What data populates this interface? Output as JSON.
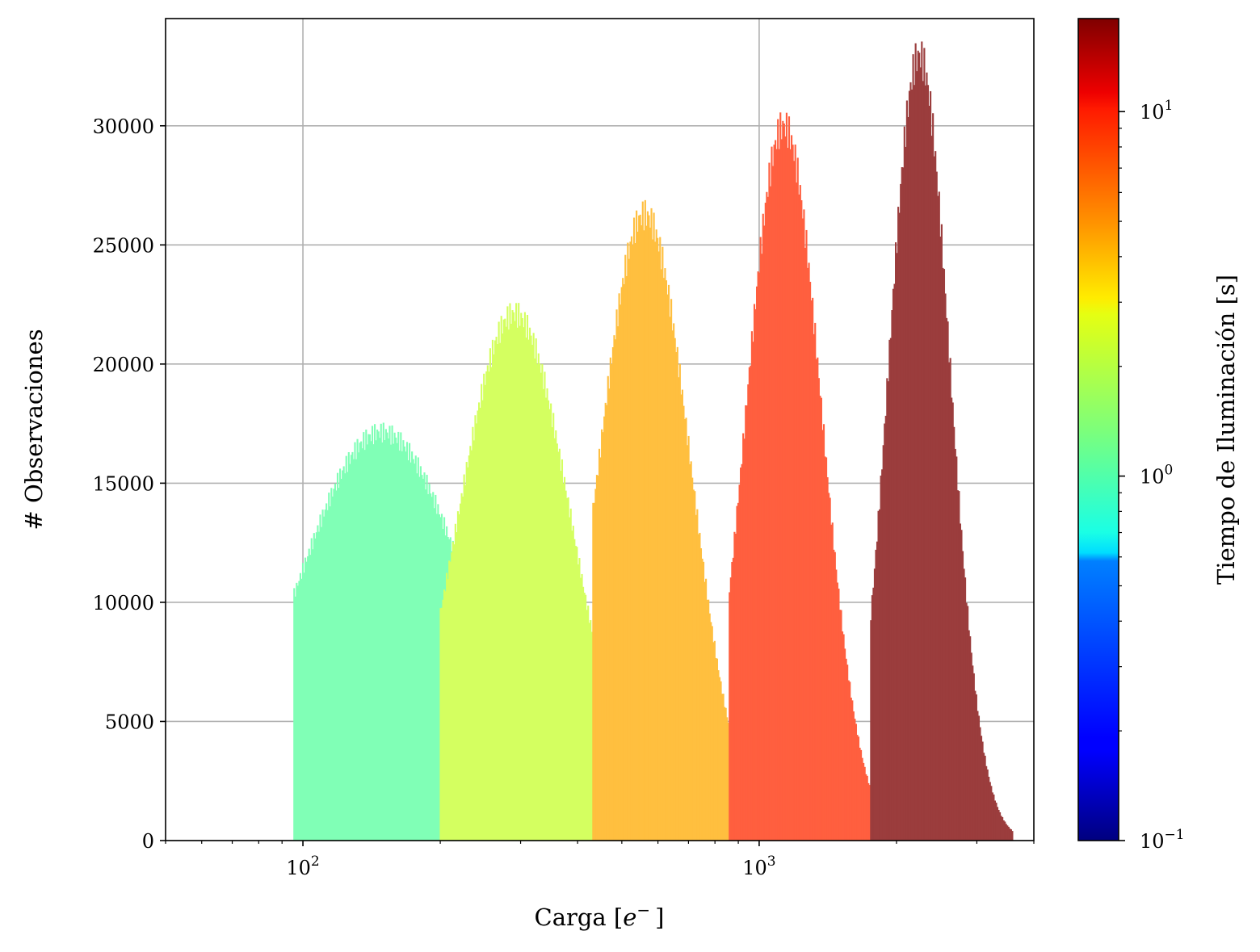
{
  "chart_data": {
    "type": "bar",
    "xlabel": "Carga [",
    "xlabel_unit": "e",
    "xlabel_sup": "−",
    "xlabel_close": "]",
    "ylabel": "# Observaciones",
    "xscale": "log",
    "xlim": [
      50,
      4000
    ],
    "ylim": [
      0,
      34500
    ],
    "grid": true,
    "y_ticks": [
      0,
      5000,
      10000,
      15000,
      20000,
      25000,
      30000
    ],
    "y_tick_labels": [
      "0",
      "5000",
      "10000",
      "15000",
      "20000",
      "25000",
      "30000"
    ],
    "x_ticks": [
      100,
      1000
    ],
    "x_tick_labels": [
      {
        "base": "10",
        "exp": "2"
      },
      {
        "base": "10",
        "exp": "3"
      }
    ],
    "series": [
      {
        "color": "#80ffb6",
        "peak_x": 148,
        "peak_y": 17000,
        "width": 0.19,
        "bump_x": 230,
        "bump_y": 250,
        "x_range": [
          95,
          270
        ]
      },
      {
        "color": "#d4ff60",
        "peak_x": 290,
        "peak_y": 22000,
        "width": 0.125,
        "bump_x": 375,
        "bump_y": 170,
        "x_range": [
          200,
          450
        ]
      },
      {
        "color": "#ffbf3f",
        "peak_x": 560,
        "peak_y": 26200,
        "width": 0.1,
        "bump_x": 730,
        "bump_y": 160,
        "x_range": [
          430,
          880
        ]
      },
      {
        "color": "#ff5f3f",
        "peak_x": 1130,
        "peak_y": 29900,
        "width": 0.082,
        "bump_x": 1470,
        "bump_y": 300,
        "x_range": [
          860,
          1800
        ]
      },
      {
        "color": "#9b3d3d",
        "peak_x": 2240,
        "peak_y": 32900,
        "width": 0.067,
        "bump_x": 2930,
        "bump_y": 280,
        "x_range": [
          1750,
          3600
        ]
      }
    ],
    "colorbar": {
      "label": "Tiempo de Iluminación [s]",
      "colormap": "jet",
      "scale": "log",
      "range": [
        0.1,
        18
      ],
      "tick_labels": [
        {
          "value": 0.1,
          "base": "10",
          "exp": "−1"
        },
        {
          "value": 1,
          "base": "10",
          "exp": "0"
        },
        {
          "value": 10,
          "base": "10",
          "exp": "1"
        }
      ]
    }
  }
}
